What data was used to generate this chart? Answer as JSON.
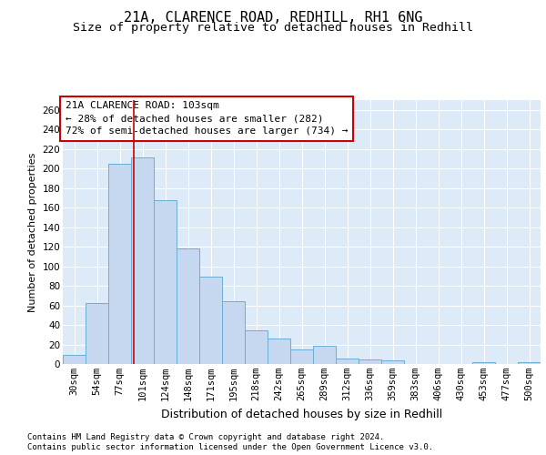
{
  "title1": "21A, CLARENCE ROAD, REDHILL, RH1 6NG",
  "title2": "Size of property relative to detached houses in Redhill",
  "xlabel": "Distribution of detached houses by size in Redhill",
  "ylabel": "Number of detached properties",
  "bar_labels": [
    "30sqm",
    "54sqm",
    "77sqm",
    "101sqm",
    "124sqm",
    "148sqm",
    "171sqm",
    "195sqm",
    "218sqm",
    "242sqm",
    "265sqm",
    "289sqm",
    "312sqm",
    "336sqm",
    "359sqm",
    "383sqm",
    "406sqm",
    "430sqm",
    "453sqm",
    "477sqm",
    "500sqm"
  ],
  "bar_values": [
    9,
    62,
    205,
    211,
    168,
    118,
    89,
    64,
    34,
    26,
    15,
    19,
    6,
    5,
    4,
    0,
    0,
    0,
    2,
    0,
    2
  ],
  "bar_color": "#c5d8f0",
  "bar_edge_color": "#6baed6",
  "ylim": [
    0,
    270
  ],
  "yticks": [
    0,
    20,
    40,
    60,
    80,
    100,
    120,
    140,
    160,
    180,
    200,
    220,
    240,
    260
  ],
  "annotation_title": "21A CLARENCE ROAD: 103sqm",
  "annotation_line1": "← 28% of detached houses are smaller (282)",
  "annotation_line2": "72% of semi-detached houses are larger (734) →",
  "annotation_box_edge_color": "#cc0000",
  "vline_color": "#cc0000",
  "vline_x": 2.62,
  "footnote1": "Contains HM Land Registry data © Crown copyright and database right 2024.",
  "footnote2": "Contains public sector information licensed under the Open Government Licence v3.0.",
  "plot_bg_color": "#ddeaf7",
  "fig_bg_color": "#ffffff",
  "grid_color": "#ffffff",
  "title1_fontsize": 11,
  "title2_fontsize": 9.5,
  "xlabel_fontsize": 9,
  "ylabel_fontsize": 8,
  "tick_fontsize": 7.5,
  "annotation_fontsize": 8,
  "footnote_fontsize": 6.5
}
